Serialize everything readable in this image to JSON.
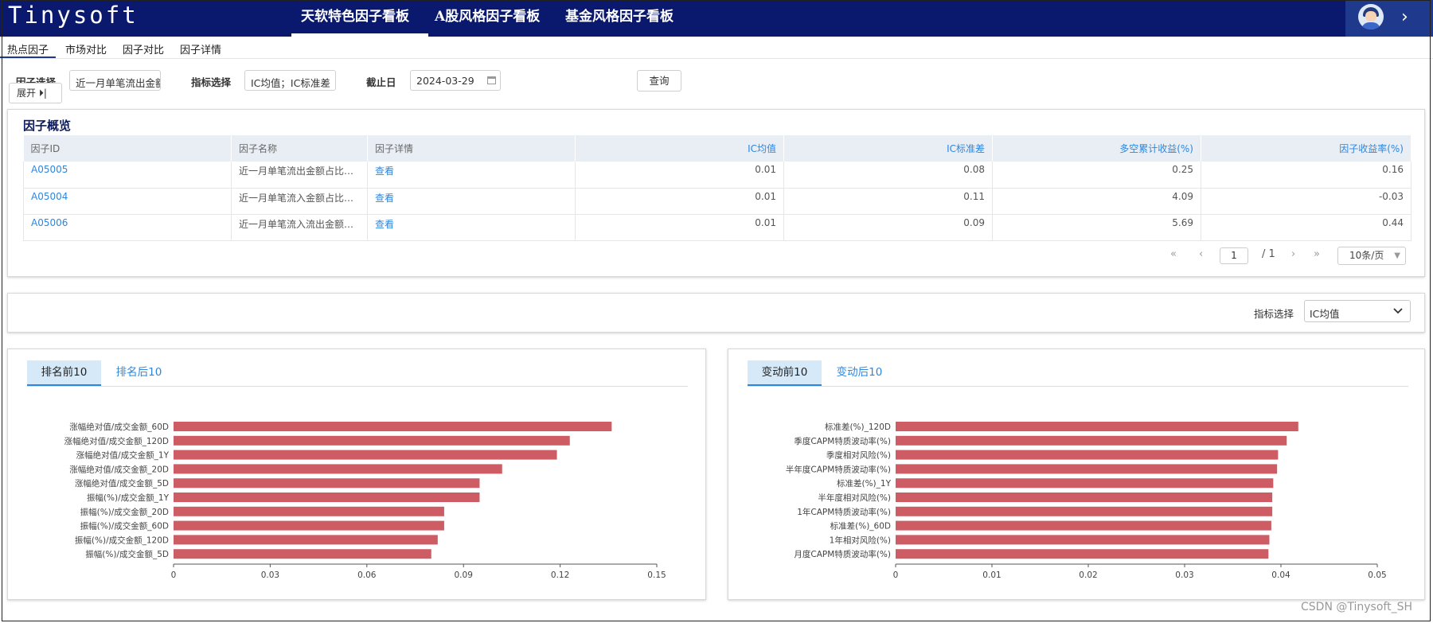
{
  "header": {
    "logo": "Tinysoft",
    "tabs": [
      "天软特色因子看板",
      "A股风格因子看板",
      "基金风格因子看板"
    ]
  },
  "subtabs": [
    "热点因子",
    "市场对比",
    "因子对比",
    "因子详情"
  ],
  "filters": {
    "factor_label": "因子选择",
    "factor_value": "近一月单笔流出金额",
    "expand_label": "展开 ⏵|",
    "indicator_label": "指标选择",
    "indicator_value": "IC均值；IC标准差",
    "date_label": "截止日",
    "date_value": "2024-03-29",
    "query_label": "查询"
  },
  "overview": {
    "title": "因子概览",
    "columns": [
      "因子ID",
      "因子名称",
      "因子详情",
      "IC均值",
      "IC标准差",
      "多空累计收益(%)",
      "因子收益率(%)"
    ],
    "rows": [
      [
        "A05005",
        "近一月单笔流出金额占比…",
        "查看",
        "0.01",
        "0.08",
        "0.25",
        "0.16"
      ],
      [
        "A05004",
        "近一月单笔流入金额占比…",
        "查看",
        "0.01",
        "0.11",
        "4.09",
        "-0.03"
      ],
      [
        "A05006",
        "近一月单笔流入流出金额…",
        "查看",
        "0.01",
        "0.09",
        "5.69",
        "0.44"
      ]
    ],
    "pagination": {
      "first": "«",
      "prev": "‹",
      "page": "1",
      "total": "/ 1",
      "next": "›",
      "last": "»",
      "page_size": "10条/页"
    }
  },
  "indicator_select": {
    "label": "指标选择",
    "value": "IC均值"
  },
  "colors": {
    "header_bg": "#0a186e",
    "bar": "#cd5c64",
    "accent": "#2e86de"
  },
  "chart_data": [
    {
      "type": "bar",
      "orientation": "horizontal",
      "tabs": [
        "排名前10",
        "排名后10"
      ],
      "active_tab": "排名前10",
      "categories": [
        "涨幅绝对值/成交金额_60D",
        "涨幅绝对值/成交金额_120D",
        "涨幅绝对值/成交金额_1Y",
        "涨幅绝对值/成交金额_20D",
        "涨幅绝对值/成交金额_5D",
        "振幅(%)/成交金额_1Y",
        "振幅(%)/成交金额_20D",
        "振幅(%)/成交金额_60D",
        "振幅(%)/成交金额_120D",
        "振幅(%)/成交金额_5D"
      ],
      "values": [
        0.136,
        0.123,
        0.119,
        0.102,
        0.095,
        0.095,
        0.084,
        0.084,
        0.082,
        0.08
      ],
      "xlim": [
        0,
        0.15
      ],
      "ticks": [
        "0",
        "0.03",
        "0.06",
        "0.09",
        "0.12",
        "0.15"
      ],
      "grid": false
    },
    {
      "type": "bar",
      "orientation": "horizontal",
      "tabs": [
        "变动前10",
        "变动后10"
      ],
      "active_tab": "变动前10",
      "categories": [
        "标准差(%)_120D",
        "季度CAPM特质波动率(%)",
        "季度相对风险(%)",
        "半年度CAPM特质波动率(%)",
        "标准差(%)_1Y",
        "半年度相对风险(%)",
        "1年CAPM特质波动率(%)",
        "标准差(%)_60D",
        "1年相对风险(%)",
        "月度CAPM特质波动率(%)"
      ],
      "values": [
        0.0418,
        0.0406,
        0.0397,
        0.0396,
        0.0392,
        0.0391,
        0.0391,
        0.039,
        0.0388,
        0.0387
      ],
      "xlim": [
        0,
        0.05
      ],
      "ticks": [
        "0",
        "0.01",
        "0.02",
        "0.03",
        "0.04",
        "0.05"
      ],
      "grid": false
    }
  ],
  "watermark": "CSDN @Tinysoft_SH"
}
